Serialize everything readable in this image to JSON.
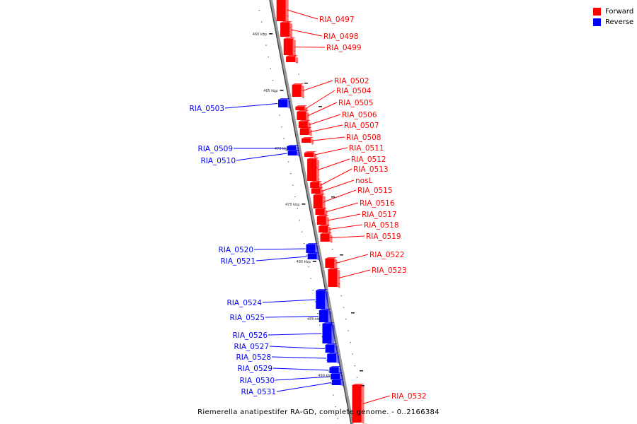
{
  "legend": {
    "forward_label": "Forward",
    "reverse_label": "Reverse",
    "forward_color": "#ff0000",
    "reverse_color": "#0000ff"
  },
  "caption": "Riemerella anatipestifer RA-GD, complete genome. - 0..2166384",
  "ticks": [
    "460 kbp",
    "465 kbp",
    "470 kbp",
    "475 kbp",
    "480 kbp",
    "485 kbp",
    "490 kbp"
  ],
  "genes": {
    "forward": [
      "RIA_0497",
      "RIA_0498",
      "RIA_0499",
      "RIA_0502",
      "RIA_0504",
      "RIA_0505",
      "RIA_0506",
      "RIA_0507",
      "RIA_0508",
      "RIA_0511",
      "RIA_0512",
      "RIA_0513",
      "nosL",
      "RIA_0515",
      "RIA_0516",
      "RIA_0517",
      "RIA_0518",
      "RIA_0519",
      "RIA_0522",
      "RIA_0523",
      "RIA_0532"
    ],
    "reverse": [
      "RIA_0503",
      "RIA_0509",
      "RIA_0510",
      "RIA_0520",
      "RIA_0521",
      "RIA_0524",
      "RIA_0525",
      "RIA_0526",
      "RIA_0527",
      "RIA_0528",
      "RIA_0529",
      "RIA_0530",
      "RIA_0531"
    ]
  }
}
